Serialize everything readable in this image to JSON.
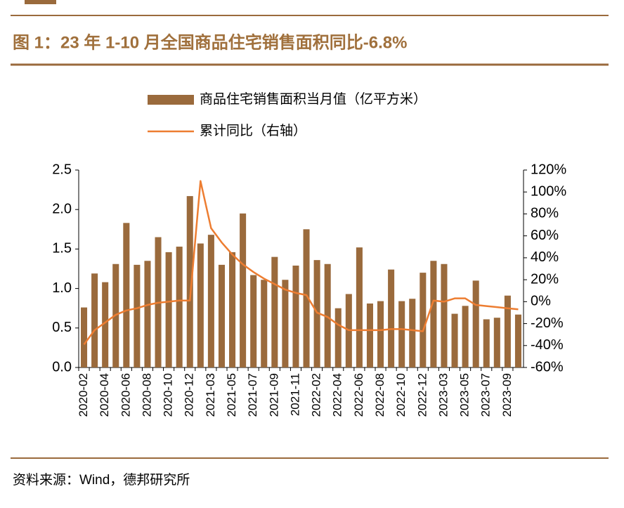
{
  "chart_data": {
    "type": "bar",
    "title": "图 1：23 年 1-10 月全国商品住宅销售面积同比-6.8%",
    "source": "资料来源：Wind，德邦研究所",
    "categories": [
      "2020-02",
      null,
      "2020-04",
      null,
      "2020-06",
      null,
      "2020-08",
      null,
      "2020-10",
      null,
      "2020-12",
      null,
      "2021-03",
      null,
      "2021-05",
      null,
      "2021-07",
      null,
      "2021-09",
      null,
      "2021-11",
      null,
      "2022-02",
      null,
      "2022-04",
      null,
      "2022-06",
      null,
      "2022-08",
      null,
      "2022-10",
      null,
      "2022-12",
      null,
      "2023-03",
      null,
      "2023-05",
      null,
      "2023-07",
      null,
      "2023-09",
      null
    ],
    "series": [
      {
        "name": "商品住宅销售面积当月值（亿平方米）",
        "type": "bar",
        "color": "#9a6a3c",
        "values": [
          0.76,
          1.19,
          1.08,
          1.31,
          1.83,
          1.3,
          1.35,
          1.65,
          1.46,
          1.53,
          2.17,
          1.57,
          1.68,
          1.3,
          1.46,
          1.95,
          1.17,
          1.11,
          1.4,
          1.11,
          1.29,
          1.75,
          1.36,
          1.31,
          0.75,
          0.93,
          1.52,
          0.81,
          0.84,
          1.24,
          0.84,
          0.87,
          1.2,
          1.35,
          1.31,
          0.68,
          0.78,
          1.1,
          0.61,
          0.63,
          0.91,
          0.67
        ]
      },
      {
        "name": "累计同比（右轴）",
        "type": "line",
        "axis": "y2",
        "color": "#ed7d31",
        "values": [
          -39,
          -26,
          -19,
          -12,
          -8,
          -6,
          -3,
          -1,
          0,
          1,
          1,
          110,
          67,
          54,
          43,
          34,
          27,
          21,
          16,
          11,
          8,
          6,
          -10,
          -14,
          -21,
          -26,
          -26,
          -26,
          -26,
          -25,
          -25,
          -26,
          -27,
          1,
          0,
          3,
          3,
          -3,
          -4,
          -5,
          -6,
          -7
        ]
      }
    ],
    "ylim": [
      0,
      2.5
    ],
    "yticks": [
      {
        "value": 0,
        "label": "0.0"
      },
      {
        "value": 0.5,
        "label": "0.5"
      },
      {
        "value": 1,
        "label": "1.0"
      },
      {
        "value": 1.5,
        "label": "1.5"
      },
      {
        "value": 2,
        "label": "2.0"
      },
      {
        "value": 2.5,
        "label": "2.5"
      }
    ],
    "y2lim": [
      -60,
      120
    ],
    "y2ticks": [
      {
        "value": -60,
        "label": "-60%"
      },
      {
        "value": -40,
        "label": "-40%"
      },
      {
        "value": -20,
        "label": "-20%"
      },
      {
        "value": 0,
        "label": "0%"
      },
      {
        "value": 20,
        "label": "20%"
      },
      {
        "value": 40,
        "label": "40%"
      },
      {
        "value": 60,
        "label": "60%"
      },
      {
        "value": 80,
        "label": "80%"
      },
      {
        "value": 100,
        "label": "100%"
      },
      {
        "value": 120,
        "label": "120%"
      }
    ]
  }
}
